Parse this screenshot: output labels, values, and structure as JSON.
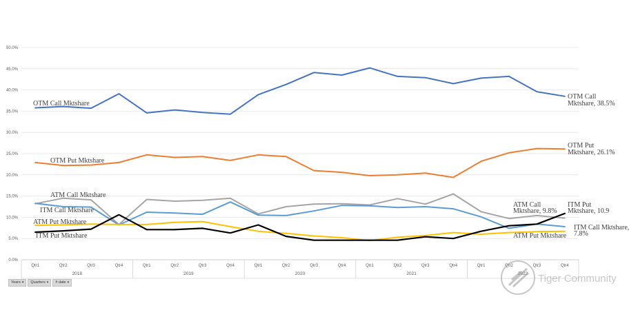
{
  "chart_data": {
    "type": "line",
    "title": "",
    "xlabel": "",
    "ylabel": "",
    "ylim": [
      0,
      50
    ],
    "yticks": [
      "0.0%",
      "5.0%",
      "10.0%",
      "15.0%",
      "20.0%",
      "25.0%",
      "30.0%",
      "35.0%",
      "40.0%",
      "45.0%",
      "50.0%"
    ],
    "grid": true,
    "categories": [
      "Qtr1",
      "Qtr2",
      "Qtr3",
      "Qtr4",
      "Qtr1",
      "Qtr2",
      "Qtr3",
      "Qtr4",
      "Qtr1",
      "Qtr2",
      "Qtr3",
      "Qtr4",
      "Qtr1",
      "Qtr2",
      "Qtr3",
      "Qtr4",
      "Qtr1",
      "Qtr2",
      "Qtr3",
      "Qtr4"
    ],
    "years": [
      "2018",
      "2019",
      "2020",
      "2021",
      "2022"
    ],
    "series": [
      {
        "name": "OTM Call Mktshare",
        "color": "#4472c4",
        "values": [
          35.8,
          36.1,
          35.7,
          39.1,
          34.6,
          35.3,
          34.7,
          34.3,
          38.9,
          41.3,
          44.1,
          43.5,
          45.2,
          43.2,
          42.9,
          41.5,
          42.8,
          43.2,
          39.6,
          38.5
        ]
      },
      {
        "name": "OTM Put Mktshare",
        "color": "#ed7d31",
        "values": [
          22.9,
          22.2,
          22.3,
          22.9,
          24.7,
          24.1,
          24.3,
          23.4,
          24.7,
          24.3,
          21.0,
          20.6,
          19.8,
          20.0,
          20.4,
          19.4,
          23.2,
          25.2,
          26.2,
          26.1
        ]
      },
      {
        "name": "ATM Call Mktshare",
        "color": "#a5a5a5",
        "values": [
          13.2,
          14.5,
          14.1,
          8.3,
          14.2,
          13.8,
          14.0,
          14.5,
          10.8,
          12.5,
          13.1,
          13.2,
          12.9,
          14.4,
          13.1,
          15.5,
          11.3,
          9.7,
          10.4,
          9.8
        ]
      },
      {
        "name": "ITM Call Mktshare",
        "color": "#5b9bd5",
        "values": [
          13.3,
          12.5,
          12.4,
          8.2,
          11.2,
          11.0,
          10.7,
          13.6,
          10.5,
          10.4,
          11.5,
          12.8,
          12.7,
          12.3,
          12.5,
          12.0,
          10.1,
          7.4,
          8.4,
          7.8
        ]
      },
      {
        "name": "ATM Put Mktshare",
        "color": "#ffc000",
        "values": [
          8.1,
          8.2,
          8.4,
          8.3,
          8.3,
          8.8,
          9.0,
          7.8,
          6.7,
          6.2,
          5.6,
          5.2,
          4.5,
          5.3,
          5.7,
          6.4,
          6.0,
          6.4,
          6.6,
          6.7
        ]
      },
      {
        "name": "ITM Put Mktshare",
        "color": "#000000",
        "values": [
          6.5,
          6.8,
          7.2,
          10.6,
          7.1,
          7.1,
          7.4,
          6.3,
          8.2,
          5.5,
          4.6,
          4.6,
          4.6,
          4.6,
          5.4,
          5.0,
          6.7,
          8.0,
          8.4,
          10.9
        ]
      }
    ],
    "annotations": [
      {
        "text": "OTM Call Mktshare"
      },
      {
        "text": "OTM Put Mktshare"
      },
      {
        "text": "ATM Call Mktshare"
      },
      {
        "text": "ITM Call Mktshare"
      },
      {
        "text": "ATM Put Mktshare"
      },
      {
        "text": "ITM Put Mktshare"
      },
      {
        "text": "OTM Call"
      },
      {
        "text": "Mktshare, 38.5%"
      },
      {
        "text": "OTM Put"
      },
      {
        "text": "Mktshare, 26.1%"
      },
      {
        "text": "ATM Call"
      },
      {
        "text": "Mktshare, 9.8%"
      },
      {
        "text": "ITM Put"
      },
      {
        "text": "Mktshare, 10.9"
      },
      {
        "text": "ITM Call Mktshare,"
      },
      {
        "text": "7.8%"
      },
      {
        "text": "ATM Put Mktshare"
      }
    ]
  },
  "filters": [
    {
      "label": "Years"
    },
    {
      "label": "Quarters"
    },
    {
      "label": "# date"
    }
  ],
  "watermark": {
    "text": "Tiger Community"
  }
}
